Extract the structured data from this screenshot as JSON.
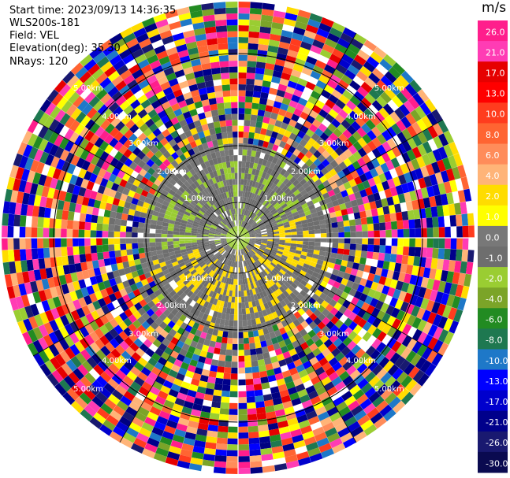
{
  "header": {
    "start_time": "Start time: 2023/09/13 14:36:35",
    "station": "WLS200s-181",
    "field": "Field: VEL",
    "elevation": "Elevation(deg): 35.30",
    "nrays": "NRays: 120"
  },
  "colorbar": {
    "unit": "m/s",
    "ticks": [
      "26.0",
      "21.0",
      "17.0",
      "13.0",
      "10.0",
      "8.0",
      "6.0",
      "4.0",
      "2.0",
      "1.0",
      "0.0",
      "-1.0",
      "-2.0",
      "-4.0",
      "-6.0",
      "-8.0",
      "-10.0",
      "-13.0",
      "-17.0",
      "-21.0",
      "-26.0",
      "-30.0"
    ],
    "colors": [
      "#ff1e8c",
      "#ff3cb4",
      "#e60000",
      "#ff0000",
      "#ff3c1e",
      "#ff6432",
      "#ff8c5a",
      "#ffb478",
      "#ffdc00",
      "#ffff00",
      "#787878",
      "#6e6e6e",
      "#9acd32",
      "#7ba428",
      "#228b22",
      "#1e7850",
      "#1e78c8",
      "#0000ff",
      "#0000cd",
      "#00008b",
      "#191970",
      "#0a0a50"
    ]
  },
  "chart_data": {
    "type": "heatmap",
    "subtype": "PPI velocity scan",
    "field": "VEL",
    "unit": "m/s",
    "nrays": 120,
    "range_ring_labels": [
      "1.00km",
      "2.00km",
      "3.00km",
      "4.00km",
      "5.00km"
    ],
    "color_scale_min": -30.0,
    "color_scale_max": 26.0
  }
}
